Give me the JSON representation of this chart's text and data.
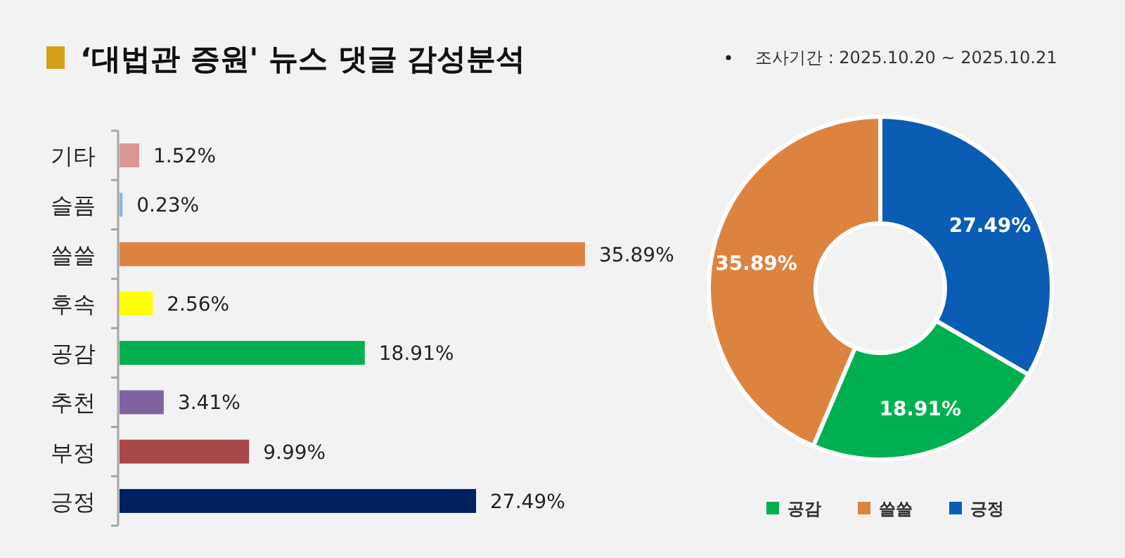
{
  "chart_data": [
    {
      "type": "bar",
      "orientation": "horizontal",
      "title": "‘대법관 증원' 뉴스 댓글 감성분석",
      "categories": [
        "기타",
        "슬픔",
        "쓸쓸",
        "후속",
        "공감",
        "추천",
        "부정",
        "긍정"
      ],
      "values": [
        1.52,
        0.23,
        35.89,
        2.56,
        18.91,
        3.41,
        9.99,
        27.49
      ],
      "value_labels": [
        "1.52%",
        "0.23%",
        "35.89%",
        "2.56%",
        "18.91%",
        "3.41%",
        "9.99%",
        "27.49%"
      ],
      "colors": [
        "#d99694",
        "#8eb4e3",
        "#dd8340",
        "#ffff00",
        "#00b050",
        "#8064a2",
        "#a9464a",
        "#002060"
      ]
    },
    {
      "type": "donut",
      "subtitle": "조사기간 : 2025.10.20 ~ 2025.10.21",
      "categories": [
        "공감",
        "쓸쓸",
        "긍정"
      ],
      "values": [
        18.91,
        35.89,
        27.49
      ],
      "value_labels": [
        "18.91%",
        "35.89%",
        "27.49%"
      ],
      "colors": [
        "#00b050",
        "#dd8340",
        "#0b5cb5"
      ],
      "legend": "bottom"
    }
  ]
}
